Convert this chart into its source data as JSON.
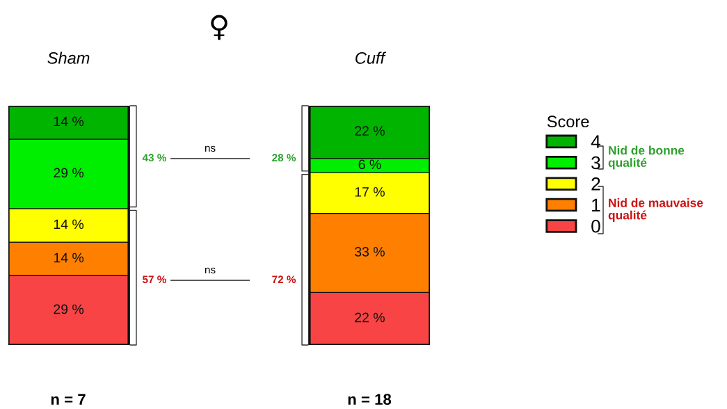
{
  "chart_data": {
    "type": "bar",
    "title": "♀",
    "stacked": true,
    "legend": "right",
    "legend_title": "Score",
    "categories": [
      "Sham",
      "Cuff"
    ],
    "series": [
      {
        "name": "0",
        "color": "#f84444",
        "values": [
          29,
          22
        ],
        "value_labels": [
          "29 %",
          "22 %"
        ]
      },
      {
        "name": "1",
        "color": "#ff8000",
        "values": [
          14,
          33
        ],
        "value_labels": [
          "14 %",
          "33 %"
        ]
      },
      {
        "name": "2",
        "color": "#ffff00",
        "values": [
          14,
          17
        ],
        "value_labels": [
          "14 %",
          "17 %"
        ]
      },
      {
        "name": "3",
        "color": "#00ee00",
        "values": [
          29,
          6
        ],
        "value_labels": [
          "29 %",
          "6 %"
        ]
      },
      {
        "name": "4",
        "color": "#00b400",
        "values": [
          14,
          22
        ],
        "value_labels": [
          "14 %",
          "22 %"
        ]
      }
    ],
    "annotations": [
      "43 %",
      "57 %",
      "28 %",
      "72 %",
      "ns",
      "ns",
      "n = 7",
      "n = 18",
      "Nid de bonne qualité",
      "Nid de mauvaise qualité"
    ]
  }
}
